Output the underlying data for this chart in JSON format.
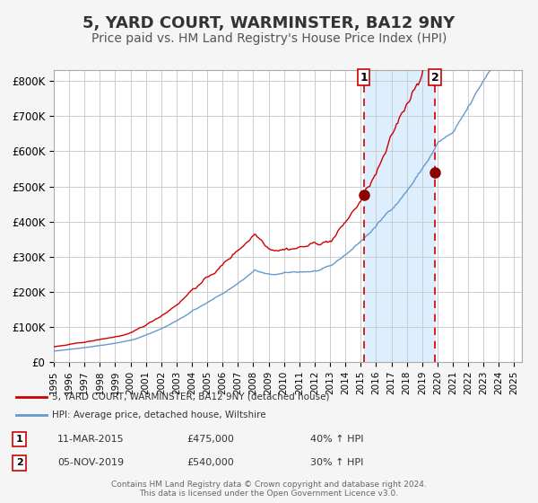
{
  "title": "5, YARD COURT, WARMINSTER, BA12 9NY",
  "subtitle": "Price paid vs. HM Land Registry's House Price Index (HPI)",
  "title_fontsize": 13,
  "subtitle_fontsize": 10,
  "ylabel_ticks": [
    "£0",
    "£100K",
    "£200K",
    "£300K",
    "£400K",
    "£500K",
    "£600K",
    "£700K",
    "£800K"
  ],
  "ytick_values": [
    0,
    100000,
    200000,
    300000,
    400000,
    500000,
    600000,
    700000,
    800000
  ],
  "ylim": [
    0,
    830000
  ],
  "xlim_start": 1995.0,
  "xlim_end": 2025.5,
  "red_line_color": "#cc0000",
  "blue_line_color": "#6699cc",
  "shade_color": "#ddeeff",
  "dashed_line_color": "#cc0000",
  "marker1_date": 2015.19,
  "marker1_value": 475000,
  "marker2_date": 2019.84,
  "marker2_value": 540000,
  "marker1_label": "1",
  "marker2_label": "2",
  "legend_red_label": "5, YARD COURT, WARMINSTER, BA12 9NY (detached house)",
  "legend_blue_label": "HPI: Average price, detached house, Wiltshire",
  "table_row1": [
    "1",
    "11-MAR-2015",
    "£475,000",
    "40% ↑ HPI"
  ],
  "table_row2": [
    "2",
    "05-NOV-2019",
    "£540,000",
    "30% ↑ HPI"
  ],
  "footer": "Contains HM Land Registry data © Crown copyright and database right 2024.\nThis data is licensed under the Open Government Licence v3.0.",
  "background_color": "#f5f5f5",
  "plot_background_color": "#ffffff",
  "grid_color": "#cccccc"
}
